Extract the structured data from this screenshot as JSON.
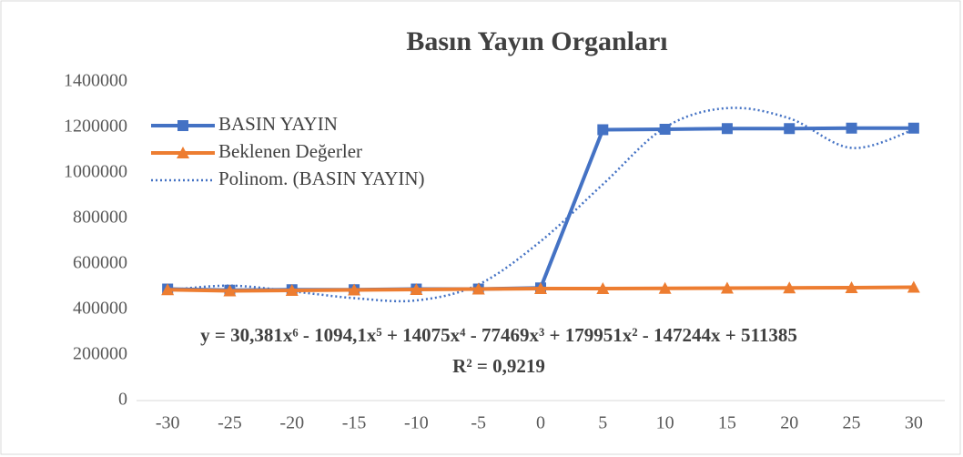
{
  "chart_data": {
    "type": "line",
    "title": "Basın Yayın Organları",
    "categories": [
      -30,
      -25,
      -20,
      -15,
      -10,
      -5,
      0,
      5,
      10,
      15,
      20,
      25,
      30
    ],
    "series": [
      {
        "name": "BASIN YAYIN",
        "color": "#4472c4",
        "marker": "square",
        "style": "solid",
        "values": [
          490000,
          485000,
          487000,
          487000,
          490000,
          490000,
          495000,
          1190000,
          1192000,
          1195000,
          1195000,
          1197000,
          1197000
        ]
      },
      {
        "name": "Beklenen Değerler",
        "color": "#ed7d31",
        "marker": "triangle",
        "style": "solid",
        "values": [
          487000,
          482000,
          484000,
          486000,
          488000,
          490000,
          492000,
          492000,
          493000,
          494000,
          495000,
          496000,
          498000
        ]
      },
      {
        "name": "Polinom. (BASIN YAYIN)",
        "color": "#4472c4",
        "marker": "none",
        "style": "dotted",
        "values": [
          485000,
          505000,
          480000,
          450000,
          440000,
          510000,
          700000,
          950000,
          1200000,
          1285000,
          1240000,
          1110000,
          1190000
        ]
      }
    ],
    "ylim": [
      0,
      1400000
    ],
    "yticks": [
      0,
      200000,
      400000,
      600000,
      800000,
      1000000,
      1200000,
      1400000
    ],
    "grid": false,
    "legend": "top-left",
    "annotations": [
      "y = 30,381x⁶ - 1094,1x⁵ + 14075x⁴ - 77469x³ + 179951x² - 147244x + 511385",
      "R² = 0,9219"
    ]
  }
}
